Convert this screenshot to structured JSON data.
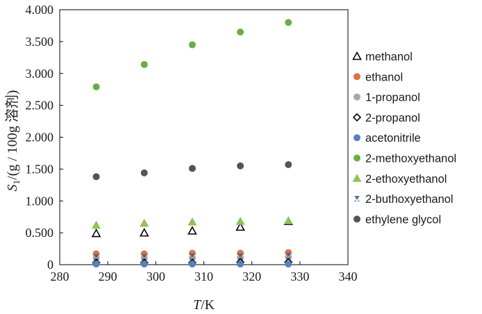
{
  "chart_data": {
    "type": "scatter",
    "xlabel": {
      "italic": "T",
      "rest": "/K"
    },
    "ylabel": {
      "italic": "S",
      "sub": "1",
      "rest": "/(g / 100g 溶剂)"
    },
    "xlim": [
      280,
      340
    ],
    "ylim": [
      0,
      4.0
    ],
    "xticks": [
      "280",
      "290",
      "300",
      "310",
      "320",
      "330",
      "340"
    ],
    "yticks": [
      "0",
      "0.500",
      "1.000",
      "1.500",
      "2.000",
      "2.500",
      "3.000",
      "3.500",
      "4.000"
    ],
    "grid": false,
    "legend_position": "right",
    "x": [
      287.6,
      297.6,
      307.6,
      317.6,
      327.6
    ],
    "series": [
      {
        "name": "methanol",
        "marker": "triangle-open",
        "color": "#000000",
        "values": [
          0.49,
          0.5,
          0.53,
          0.59,
          0.68
        ]
      },
      {
        "name": "ethanol",
        "marker": "circle",
        "color": "#e0723f",
        "values": [
          0.17,
          0.17,
          0.18,
          0.18,
          0.19
        ]
      },
      {
        "name": "1-propanol",
        "marker": "circle",
        "color": "#a6a6a6",
        "values": [
          0.11,
          0.11,
          0.11,
          0.11,
          0.12
        ]
      },
      {
        "name": "2-propanol",
        "marker": "diamond-open",
        "color": "#000000",
        "values": [
          0.03,
          0.03,
          0.03,
          0.04,
          0.04
        ]
      },
      {
        "name": "acetonitrile",
        "marker": "circle",
        "color": "#5b7fc0",
        "values": [
          0.01,
          0.01,
          0.01,
          0.01,
          0.01
        ]
      },
      {
        "name": "2-methoxyethanol",
        "marker": "circle",
        "color": "#6aac45",
        "values": [
          2.79,
          3.14,
          3.45,
          3.65,
          3.8
        ]
      },
      {
        "name": "2-ethoxyethanol",
        "marker": "triangle",
        "color": "#8cc35a",
        "values": [
          0.62,
          0.65,
          0.67,
          0.68,
          0.69
        ]
      },
      {
        "name": "2-buthoxyethanol",
        "marker": "bowtie",
        "color": "#3f5f9e",
        "values": [
          0.12,
          0.12,
          0.13,
          0.13,
          0.14
        ]
      },
      {
        "name": "ethylene glycol",
        "marker": "circle",
        "color": "#555555",
        "values": [
          1.38,
          1.44,
          1.51,
          1.55,
          1.57
        ]
      }
    ]
  }
}
